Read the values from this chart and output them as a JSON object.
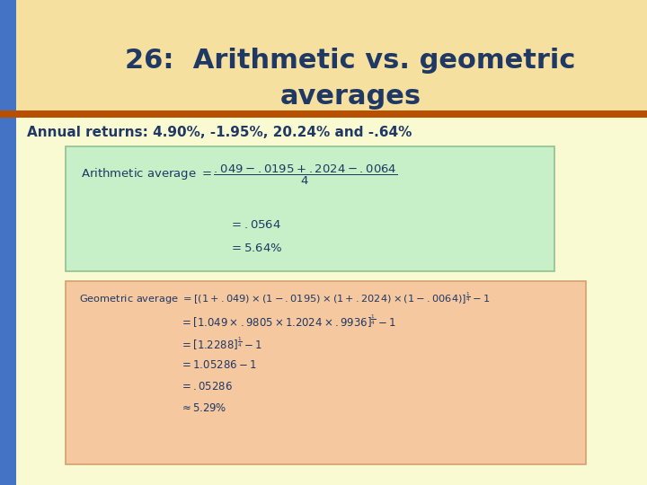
{
  "title_line1": "26:  Arithmetic vs. geometric",
  "title_line2": "averages",
  "title_color": "#1F3864",
  "title_fontsize": 22,
  "subtitle": "Annual returns: 4.90%, -1.95%, 20.24% and -.64%",
  "subtitle_fontsize": 11,
  "subtitle_color": "#1F3864",
  "bg_top_color": "#F5E0A0",
  "bg_bottom_color": "#FAFAD2",
  "left_bar_color": "#4472C4",
  "title_bar_color": "#B85000",
  "arith_box_color": "#C8F0C8",
  "geo_box_color": "#F5C8A0",
  "arith_box_edge": "#90C090",
  "geo_box_edge": "#D4A070",
  "text_color": "#1F3864"
}
